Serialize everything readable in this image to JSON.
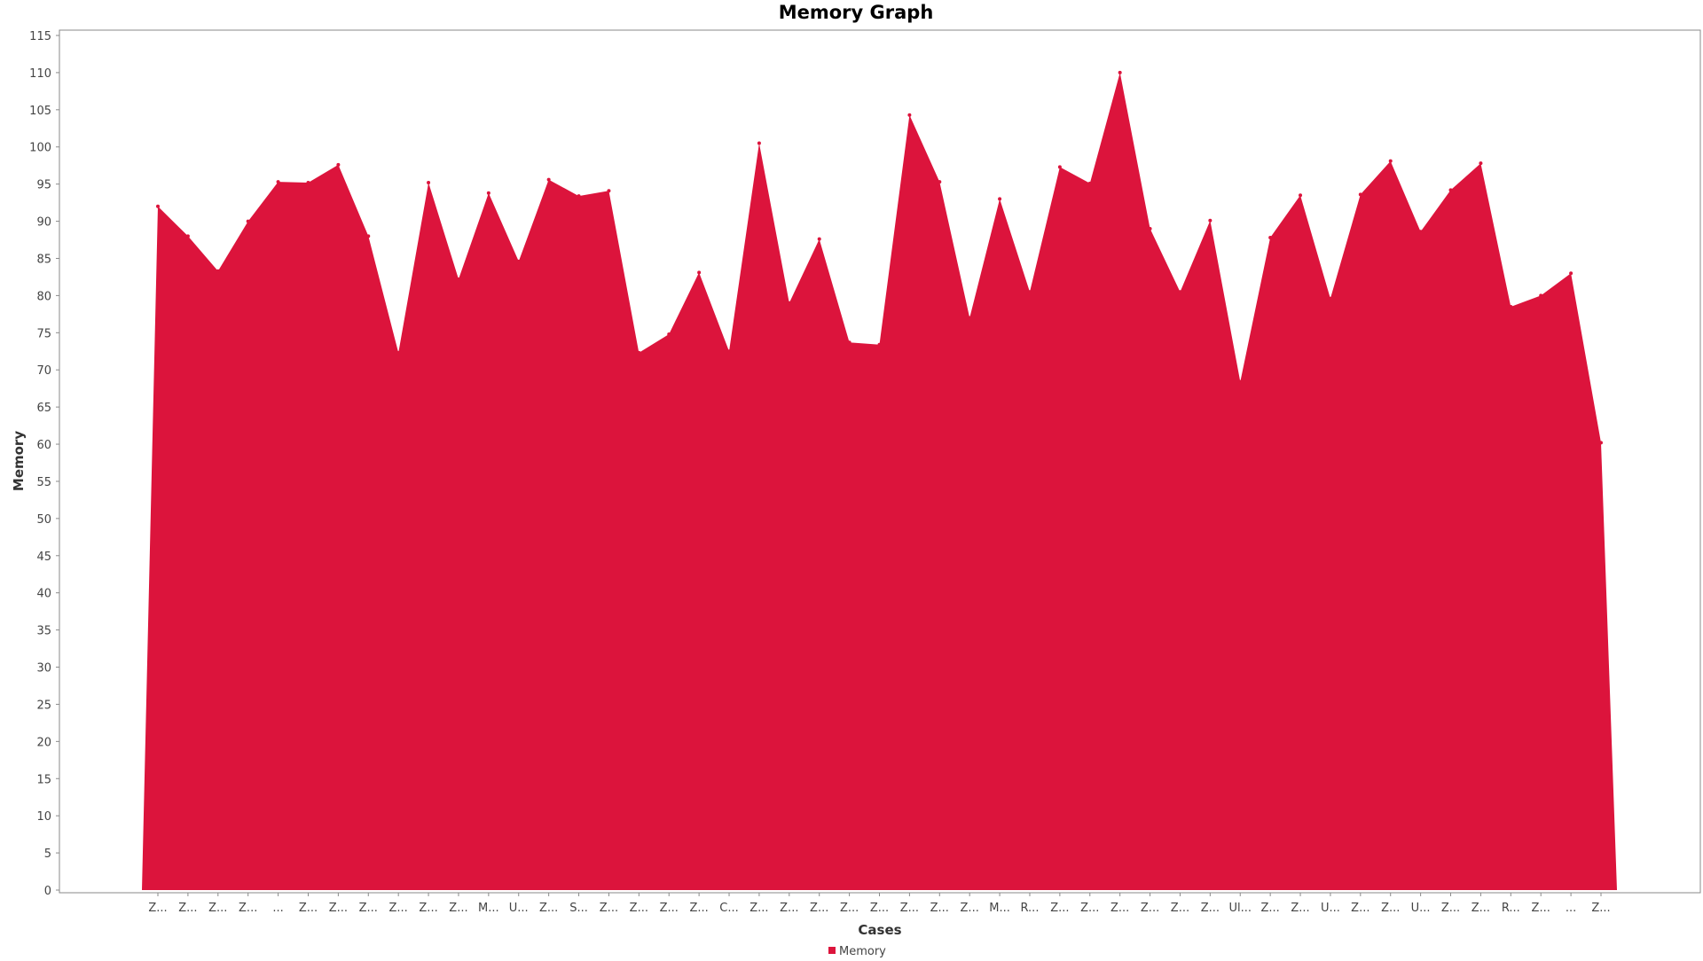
{
  "chart_data": {
    "type": "area",
    "title": "Memory Graph",
    "xlabel": "Cases",
    "ylabel": "Memory",
    "ylim": [
      0,
      115
    ],
    "ytick_step": 5,
    "grid": false,
    "legend_placement": "bottom",
    "categories": [
      "Z...",
      "Z...",
      "Z...",
      "Z...",
      "...",
      "Z...",
      "Z...",
      "Z...",
      "Z...",
      "Z...",
      "Z...",
      "M...",
      "U...",
      "Z...",
      "S...",
      "Z...",
      "Z...",
      "Z...",
      "Z...",
      "C...",
      "Z...",
      "Z...",
      "Z...",
      "Z...",
      "Z...",
      "Z...",
      "Z...",
      "Z...",
      "M...",
      "R...",
      "Z...",
      "Z...",
      "Z...",
      "Z...",
      "Z...",
      "Z...",
      "Ul...",
      "Z...",
      "Z...",
      "U...",
      "Z...",
      "Z...",
      "U...",
      "Z...",
      "Z...",
      "R...",
      "Z...",
      "...",
      "Z..."
    ],
    "series": [
      {
        "name": "Memory",
        "color": "#dc143c",
        "values": [
          92,
          88,
          83.3,
          90,
          95.3,
          95.2,
          97.6,
          88,
          72.3,
          95.2,
          82.2,
          93.8,
          84.6,
          95.6,
          93.4,
          94.1,
          72.3,
          74.8,
          83.1,
          72.5,
          100.5,
          79,
          87.6,
          73.7,
          73.4,
          104.3,
          95.3,
          77,
          93,
          80.5,
          97.3,
          95.1,
          110,
          89,
          80.5,
          90.1,
          68.4,
          87.8,
          93.5,
          79.6,
          93.6,
          98.1,
          88.6,
          94.2,
          97.8,
          78.5,
          80,
          83,
          60.2
        ]
      }
    ]
  }
}
